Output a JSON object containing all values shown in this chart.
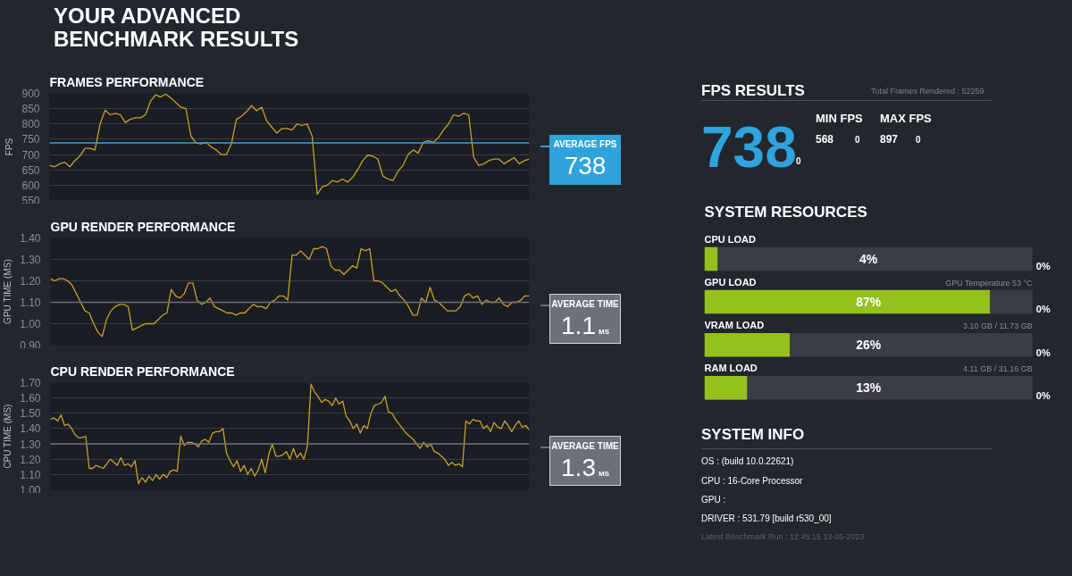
{
  "chart_data": [
    {
      "type": "other",
      "title": "YOUR ADVANCED BENCHMARK RESULTS"
    },
    {
      "type": "line",
      "title": "FRAMES PERFORMANCE",
      "ylabel": "FPS",
      "annotations": [
        "738"
      ],
      "categories": [
        null,
        null,
        null,
        null,
        null,
        null,
        null,
        null,
        null,
        null,
        null,
        null,
        null,
        null,
        null,
        null,
        null,
        null,
        null,
        null,
        null,
        null,
        null,
        null,
        null,
        null,
        null,
        null,
        null,
        null,
        null,
        null,
        null,
        null,
        null,
        null,
        null,
        null,
        null,
        null,
        null,
        null,
        null,
        null,
        null,
        null,
        null,
        null,
        null,
        null,
        null,
        null,
        null,
        null,
        null,
        null,
        null,
        null,
        null,
        null,
        null,
        null,
        null,
        null,
        null,
        null,
        null,
        null,
        null,
        null,
        null,
        null,
        null,
        null,
        null,
        null,
        null,
        null,
        null,
        null,
        null,
        null,
        null,
        null,
        null,
        null,
        null,
        null,
        null,
        null,
        null,
        null,
        null,
        null,
        null,
        null
      ],
      "ylim": [
        550,
        900
      ],
      "yticks": [
        550,
        600,
        650,
        700,
        750,
        800,
        850,
        900
      ],
      "grid": "y",
      "series": [
        {
          "color": "#c9a227",
          "values": [
            665,
            660,
            670,
            675,
            660,
            680,
            695,
            720,
            720,
            715,
            800,
            845,
            830,
            835,
            830,
            805,
            815,
            820,
            820,
            830,
            875,
            895,
            888,
            898,
            885,
            870,
            855,
            850,
            760,
            738,
            735,
            740,
            725,
            715,
            700,
            700,
            735,
            815,
            825,
            840,
            860,
            843,
            855,
            810,
            790,
            770,
            785,
            785,
            780,
            800,
            795,
            800,
            760,
            570,
            595,
            600,
            615,
            610,
            620,
            610,
            625,
            650,
            680,
            698,
            695,
            685,
            630,
            620,
            615,
            645,
            665,
            700,
            715,
            705,
            740,
            745,
            740,
            755,
            780,
            800,
            830,
            825,
            835,
            830,
            690,
            665,
            670,
            680,
            685,
            685,
            670,
            680,
            690,
            670,
            680,
            685
          ]
        }
      ],
      "ref_lines": [
        {
          "axis": "y",
          "value": 738,
          "label": "AVERAGE FPS",
          "color": "#2fa3dc"
        }
      ]
    },
    {
      "type": "line",
      "title": "GPU RENDER PERFORMANCE",
      "ylabel": "GPU TIME (MS)",
      "categories": [
        null,
        null,
        null,
        null,
        null,
        null,
        null,
        null,
        null,
        null,
        null,
        null,
        null,
        null,
        null,
        null,
        null,
        null,
        null,
        null,
        null,
        null,
        null,
        null,
        null,
        null,
        null,
        null,
        null,
        null,
        null,
        null,
        null,
        null,
        null,
        null,
        null,
        null,
        null,
        null,
        null,
        null,
        null,
        null,
        null,
        null,
        null,
        null,
        null,
        null,
        null,
        null,
        null,
        null,
        null,
        null,
        null,
        null,
        null,
        null,
        null,
        null,
        null,
        null,
        null,
        null,
        null,
        null,
        null,
        null,
        null,
        null,
        null,
        null,
        null,
        null,
        null,
        null,
        null,
        null,
        null,
        null,
        null,
        null,
        null,
        null,
        null,
        null,
        null,
        null,
        null,
        null,
        null,
        null,
        null,
        null,
        null,
        null,
        null,
        null,
        null,
        null,
        null,
        null,
        null,
        null,
        null,
        null,
        null,
        null,
        null,
        null
      ],
      "ylim": [
        0.9,
        1.4
      ],
      "yticks": [
        {
          "value": 0.9,
          "label": "0.90"
        },
        {
          "value": 1.0,
          "label": "1.00"
        },
        {
          "value": 1.1,
          "label": "1.10"
        },
        {
          "value": 1.2,
          "label": "1.20"
        },
        {
          "value": 1.3,
          "label": "1.30"
        },
        {
          "value": 1.4,
          "label": "1.40"
        }
      ],
      "grid": "y",
      "series": [
        {
          "color": "#c9a227",
          "values": [
            1.21,
            1.2,
            1.21,
            1.21,
            1.2,
            1.18,
            1.14,
            1.1,
            1.06,
            1.05,
            1.0,
            0.96,
            0.94,
            1.02,
            1.06,
            1.08,
            1.09,
            1.09,
            1.08,
            0.97,
            0.98,
            0.99,
            1.0,
            1.0,
            1.0,
            1.02,
            1.04,
            1.05,
            1.16,
            1.13,
            1.12,
            1.14,
            1.19,
            1.19,
            1.11,
            1.09,
            1.1,
            1.12,
            1.08,
            1.07,
            1.06,
            1.05,
            1.05,
            1.04,
            1.05,
            1.05,
            1.07,
            1.09,
            1.08,
            1.08,
            1.07,
            1.1,
            1.11,
            1.13,
            1.13,
            1.11,
            1.32,
            1.32,
            1.34,
            1.32,
            1.3,
            1.35,
            1.35,
            1.36,
            1.35,
            1.27,
            1.25,
            1.25,
            1.23,
            1.25,
            1.27,
            1.26,
            1.35,
            1.34,
            1.35,
            1.2,
            1.2,
            1.19,
            1.17,
            1.15,
            1.16,
            1.13,
            1.11,
            1.08,
            1.04,
            1.04,
            1.12,
            1.1,
            1.17,
            1.11,
            1.1,
            1.08,
            1.06,
            1.06,
            1.06,
            1.08,
            1.13,
            1.14,
            1.12,
            1.13,
            1.09,
            1.11,
            1.1,
            1.1,
            1.12,
            1.09,
            1.08,
            1.1,
            1.1,
            1.11,
            1.13,
            1.13
          ]
        }
      ],
      "ref_lines": [
        {
          "axis": "y",
          "value": 1.1,
          "label": "AVERAGE TIME",
          "color": "#6c7079"
        }
      ],
      "annotations": [
        "1.1",
        "MS"
      ]
    },
    {
      "type": "line",
      "title": "CPU RENDER PERFORMANCE",
      "ylabel": "CPU TIME (MS)",
      "categories": [
        null,
        null,
        null,
        null,
        null,
        null,
        null,
        null,
        null,
        null,
        null,
        null,
        null,
        null,
        null,
        null,
        null,
        null,
        null,
        null,
        null,
        null,
        null,
        null,
        null,
        null,
        null,
        null,
        null,
        null,
        null,
        null,
        null,
        null,
        null,
        null,
        null,
        null,
        null,
        null,
        null,
        null,
        null,
        null,
        null,
        null,
        null,
        null,
        null,
        null,
        null,
        null,
        null,
        null,
        null,
        null,
        null,
        null,
        null,
        null,
        null,
        null,
        null,
        null,
        null,
        null,
        null,
        null,
        null,
        null,
        null,
        null,
        null,
        null,
        null,
        null,
        null,
        null,
        null,
        null,
        null,
        null,
        null,
        null,
        null,
        null,
        null,
        null,
        null,
        null,
        null,
        null,
        null,
        null,
        null,
        null,
        null,
        null,
        null,
        null,
        null,
        null,
        null,
        null,
        null,
        null,
        null,
        null,
        null,
        null,
        null,
        null,
        null,
        null,
        null,
        null,
        null,
        null,
        null,
        null,
        null,
        null,
        null,
        null,
        null,
        null,
        null,
        null,
        null,
        null,
        null,
        null,
        null,
        null,
        null,
        null,
        null
      ],
      "ylim": [
        1.0,
        1.7
      ],
      "yticks": [
        {
          "value": 1.0,
          "label": "1.00"
        },
        {
          "value": 1.1,
          "label": "1.10"
        },
        {
          "value": 1.2,
          "label": "1.20"
        },
        {
          "value": 1.3,
          "label": "1.30"
        },
        {
          "value": 1.4,
          "label": "1.40"
        },
        {
          "value": 1.5,
          "label": "1.50"
        },
        {
          "value": 1.6,
          "label": "1.60"
        },
        {
          "value": 1.7,
          "label": "1.70"
        }
      ],
      "grid": "y",
      "series": [
        {
          "color": "#c9a227",
          "values": [
            1.46,
            1.47,
            1.45,
            1.49,
            1.42,
            1.43,
            1.4,
            1.36,
            1.34,
            1.34,
            1.35,
            1.14,
            1.14,
            1.16,
            1.15,
            1.14,
            1.17,
            1.2,
            1.18,
            1.16,
            1.21,
            1.16,
            1.17,
            1.15,
            1.19,
            1.04,
            1.08,
            1.05,
            1.09,
            1.06,
            1.1,
            1.07,
            1.1,
            1.08,
            1.12,
            1.13,
            1.12,
            1.35,
            1.29,
            1.31,
            1.31,
            1.3,
            1.28,
            1.32,
            1.33,
            1.31,
            1.37,
            1.38,
            1.38,
            1.4,
            1.24,
            1.19,
            1.15,
            1.19,
            1.12,
            1.16,
            1.1,
            1.14,
            1.09,
            1.13,
            1.2,
            1.11,
            1.23,
            1.3,
            1.22,
            1.22,
            1.23,
            1.25,
            1.2,
            1.27,
            1.21,
            1.24,
            1.2,
            1.29,
            1.69,
            1.64,
            1.61,
            1.57,
            1.59,
            1.58,
            1.55,
            1.6,
            1.56,
            1.58,
            1.48,
            1.45,
            1.4,
            1.43,
            1.37,
            1.42,
            1.4,
            1.5,
            1.55,
            1.56,
            1.57,
            1.61,
            1.51,
            1.5,
            1.46,
            1.43,
            1.4,
            1.37,
            1.35,
            1.33,
            1.3,
            1.27,
            1.31,
            1.28,
            1.3,
            1.25,
            1.24,
            1.22,
            1.2,
            1.16,
            1.18,
            1.16,
            1.17,
            1.15,
            1.45,
            1.43,
            1.46,
            1.45,
            1.45,
            1.4,
            1.42,
            1.38,
            1.44,
            1.41,
            1.4,
            1.45,
            1.42,
            1.38,
            1.42,
            1.45,
            1.41,
            1.42,
            1.39
          ]
        }
      ],
      "ref_lines": [
        {
          "axis": "y",
          "value": 1.3,
          "label": "AVERAGE TIME",
          "color": "#6c7079"
        }
      ],
      "annotations": [
        "1.3",
        "MS"
      ]
    },
    {
      "type": "other",
      "title": "FPS RESULTS",
      "annotations": [
        "Total Frames Rendered : 52259",
        "738",
        "0",
        "MIN FPS",
        "568",
        "0",
        "MAX FPS",
        "897",
        "0"
      ]
    },
    {
      "type": "bar",
      "orientation": "horizontal",
      "title": "SYSTEM RESOURCES",
      "categories": [
        "CPU LOAD",
        "GPU LOAD",
        "VRAM LOAD",
        "RAM LOAD"
      ],
      "values": [
        4,
        87,
        26,
        13
      ],
      "color": "#95c11f",
      "xlim": [
        0,
        100
      ],
      "value_labels": [
        "4%",
        "87%",
        "26%",
        "13%"
      ],
      "annotations": [
        "GPU Temperature 53 °C",
        "3.10 GB / 11.73 GB",
        "4.11 GB / 31.16 GB",
        "0%",
        "0%",
        "0%",
        "0%"
      ]
    },
    {
      "type": "other",
      "title": "SYSTEM INFO",
      "annotations": [
        "OS : (build 10.0.22621)",
        "CPU : 16-Core Processor",
        "GPU :",
        "DRIVER : 531.79 [build r530_00]",
        "Latest Benchmark Run : 12:45:15 13-05-2023"
      ]
    }
  ]
}
